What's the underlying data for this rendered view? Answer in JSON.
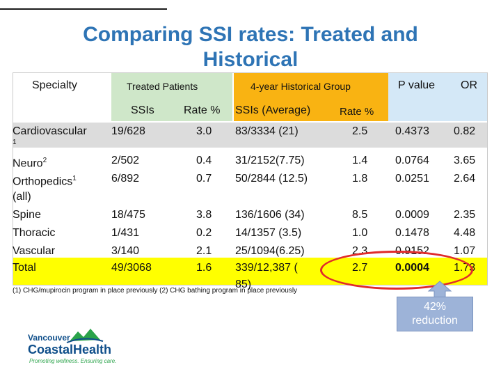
{
  "title": {
    "line1": "Comparing  SSI rates: Treated and",
    "line2": "Historical"
  },
  "headers": {
    "specialty": "Specialty",
    "treated": "Treated Patients",
    "historical": "4-year Historical Group",
    "p_value": "P value",
    "or": "OR",
    "sub_ssis": "SSIs",
    "sub_rate1": "Rate %",
    "sub_ssis_avg": "SSIs (Average)",
    "sub_rate2": "Rate %"
  },
  "rows": [
    {
      "specialty": "Cardiovascular",
      "sup": "1",
      "ssis": "19/628",
      "rate": "3.0",
      "hist": "83/3334 (21)",
      "hrate": "2.5",
      "p": "0.4373",
      "or": "0.82"
    },
    {
      "specialty": "Neuro",
      "sup": "2",
      "ssis": "2/502",
      "rate": "0.4",
      "hist": "31/2152(7.75)",
      "hrate": "1.4",
      "p": "0.0764",
      "or": "3.65"
    },
    {
      "specialty": "Orthopedics",
      "sup": "1",
      "ssis": "6/892",
      "rate": "0.7",
      "hist": "50/2844 (12.5)",
      "hrate": "1.8",
      "p": "0.0251",
      "or": "2.64"
    },
    {
      "specialty": "(all)",
      "sup": "",
      "ssis": "",
      "rate": "",
      "hist": "",
      "hrate": "",
      "p": "",
      "or": ""
    },
    {
      "specialty": "Spine",
      "sup": "",
      "ssis": "18/475",
      "rate": "3.8",
      "hist": "136/1606 (34)",
      "hrate": "8.5",
      "p": "0.0009",
      "or": "2.35"
    },
    {
      "specialty": "Thoracic",
      "sup": "",
      "ssis": "1/431",
      "rate": "0.2",
      "hist": "14/1357 (3.5)",
      "hrate": "1.0",
      "p": "0.1478",
      "or": "4.48"
    },
    {
      "specialty": "Vascular",
      "sup": "",
      "ssis": "3/140",
      "rate": "2.1",
      "hist": "25/1094(6.25)",
      "hrate": "2.3",
      "p": "0.9152",
      "or": "1.07"
    },
    {
      "specialty": "Total",
      "sup": "",
      "ssis": "49/3068",
      "rate": "1.6",
      "hist": "339/12,387 (",
      "hrate": "2.7",
      "p": "0.0004",
      "or": "1.73"
    },
    {
      "specialty": "",
      "sup": "",
      "ssis": "",
      "rate": "",
      "hist": "85)",
      "hrate": "",
      "p": "",
      "or": ""
    }
  ],
  "footnote": "(1) CHG/mupirocin program in place previously (2) CHG bathing program in place previously",
  "callout": {
    "line1": "42%",
    "line2": "reduction"
  },
  "logo": {
    "line1": "Vancouver",
    "line2": "CoastalHealth",
    "tagline": "Promoting wellness. Ensuring care."
  },
  "colors": {
    "title": "#2e74b5",
    "treated_header": "#cfe7c9",
    "historical_header": "#f9b312",
    "p_header": "#d4e8f7",
    "highlight": "#ffff00",
    "oval": "#e02b2b",
    "callout_bg": "#9db3d8"
  }
}
